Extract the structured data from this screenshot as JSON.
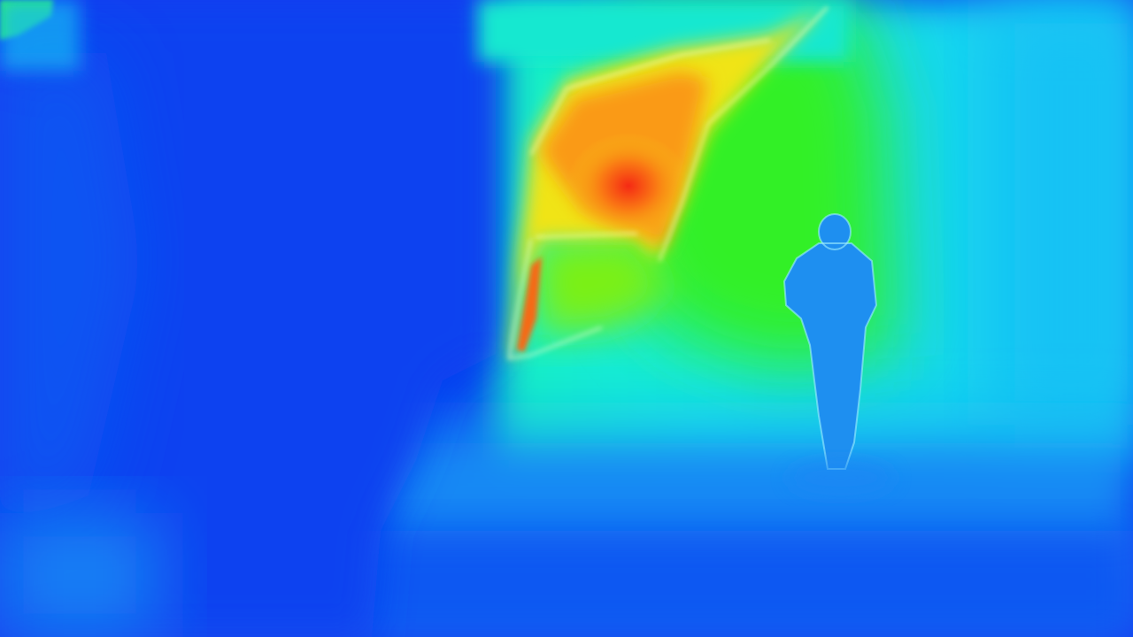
{
  "image": {
    "kind": "depth-colormap",
    "colormap": "jet",
    "palette": {
      "deep_blue": "#0a3cf0",
      "blue": "#1a64f5",
      "sky_blue": "#1e9bf5",
      "cyan": "#19e0ec",
      "aqua_green": "#19f0b4",
      "green": "#2ef01e",
      "yellow_green": "#a8f012",
      "yellow": "#f5e614",
      "orange": "#fa9614",
      "red": "#f53214",
      "figure_blue": "#1e8ff0"
    },
    "regions": [
      "left-dark-blue-area",
      "center-warm-region",
      "right-cyan-wall",
      "standing-person-silhouette",
      "floor-gradient"
    ]
  }
}
